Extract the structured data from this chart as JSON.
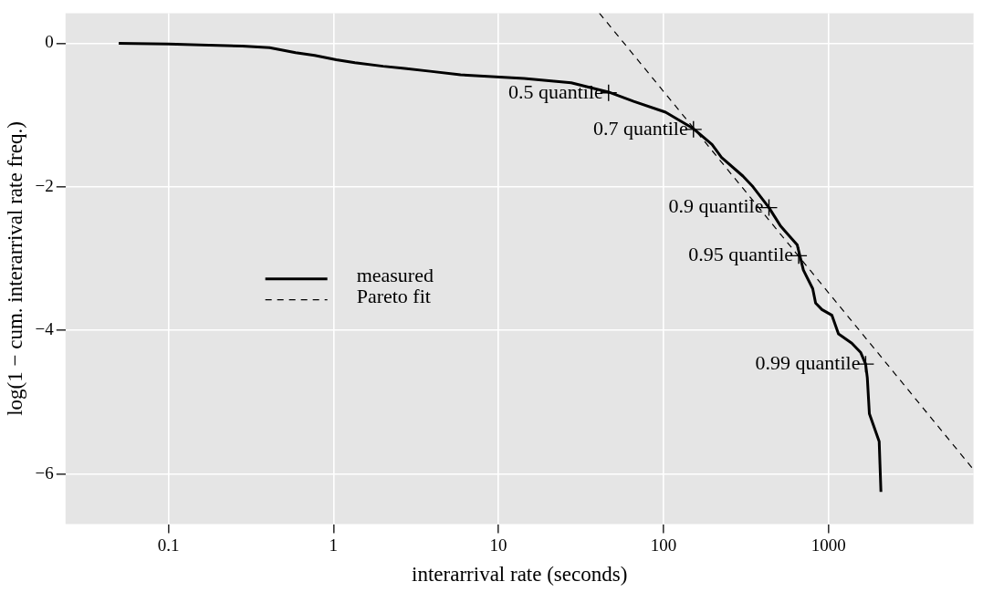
{
  "chart_data": {
    "type": "line",
    "xlabel": "interarrival rate (seconds)",
    "ylabel": "log(1 − cum. interarrival rate freq.)",
    "log": "x",
    "grid": true,
    "legend": "center left",
    "xlim": [
      0.0238,
      7570
    ],
    "ylim": [
      -6.7,
      0.42
    ],
    "xticks": [
      0.1,
      1,
      10,
      100,
      1000
    ],
    "yticks": [
      {
        "value": -6,
        "label": "−6"
      },
      {
        "value": -4,
        "label": "−4"
      },
      {
        "value": -2,
        "label": "−2"
      },
      0
    ],
    "series": [
      {
        "name": "measured",
        "color": "#000000",
        "line_style": "solid",
        "marker": "none",
        "x": [
          0.05,
          0.1,
          0.28,
          0.41,
          0.59,
          0.77,
          1.04,
          1.35,
          2.0,
          2.7,
          3.85,
          5.9,
          14.3,
          27.6,
          46.5,
          66,
          103,
          152,
          197,
          225,
          303,
          349,
          436,
          514,
          647,
          705,
          803,
          836,
          913,
          1050,
          1150,
          1385,
          1570,
          1680,
          1720,
          1770,
          2030,
          2080
        ],
        "values": [
          0,
          -0.01,
          -0.04,
          -0.06,
          -0.13,
          -0.17,
          -0.23,
          -0.27,
          -0.32,
          -0.35,
          -0.39,
          -0.44,
          -0.49,
          -0.55,
          -0.68,
          -0.81,
          -0.96,
          -1.19,
          -1.41,
          -1.59,
          -1.85,
          -2.0,
          -2.29,
          -2.55,
          -2.81,
          -3.16,
          -3.42,
          -3.62,
          -3.71,
          -3.79,
          -4.05,
          -4.18,
          -4.31,
          -4.47,
          -4.66,
          -5.16,
          -5.55,
          -6.25
        ]
      },
      {
        "name": "Pareto fit",
        "color": "#000000",
        "line_style": "dashed",
        "marker": "none",
        "x": [
          40.9,
          7570
        ],
        "values": [
          0.42,
          -5.94
        ]
      },
      {
        "type": "scatter",
        "color": "#000000",
        "marker": "cross",
        "x": [
          46.5,
          152,
          436,
          660,
          1680
        ],
        "values": [
          -0.69,
          -1.2,
          -2.29,
          -2.96,
          -4.47
        ]
      }
    ],
    "annotations": [
      {
        "text": "0.5 quantile",
        "x": 46.5,
        "y": -0.69
      },
      {
        "text": "0.7 quantile",
        "x": 152,
        "y": -1.2
      },
      {
        "text": "0.9 quantile",
        "x": 436,
        "y": -2.29
      },
      {
        "text": "0.95 quantile",
        "x": 660,
        "y": -2.96
      },
      {
        "text": "0.99 quantile",
        "x": 1680,
        "y": -4.47
      }
    ]
  }
}
